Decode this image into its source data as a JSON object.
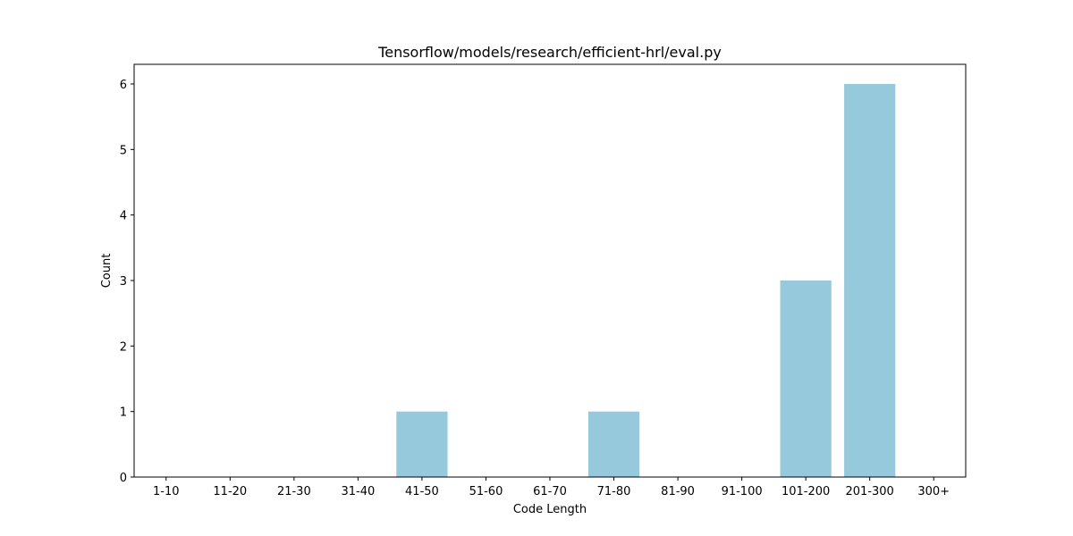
{
  "chart_data": {
    "type": "bar",
    "title": "Tensorflow/models/research/efficient-hrl/eval.py",
    "xlabel": "Code Length",
    "ylabel": "Count",
    "categories": [
      "1-10",
      "11-20",
      "21-30",
      "31-40",
      "41-50",
      "51-60",
      "61-70",
      "71-80",
      "81-90",
      "91-100",
      "101-200",
      "201-300",
      "300+"
    ],
    "values": [
      0,
      0,
      0,
      0,
      1,
      0,
      0,
      1,
      0,
      0,
      3,
      6,
      0
    ],
    "ylim": [
      0,
      6.3
    ],
    "yticks": [
      0,
      1,
      2,
      3,
      4,
      5,
      6
    ],
    "bar_color": "#96c9dc",
    "grid": false,
    "legend": "none"
  }
}
